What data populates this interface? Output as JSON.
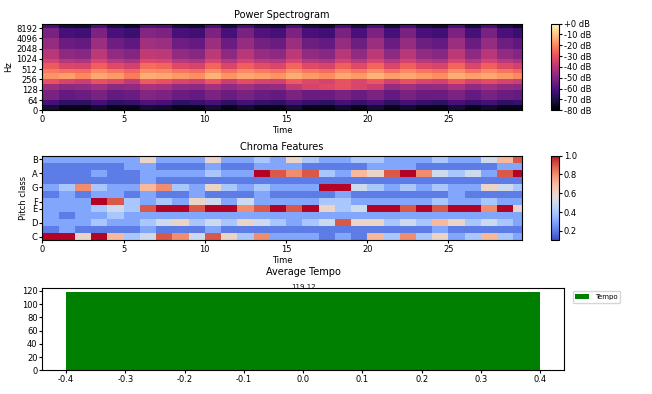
{
  "chart_data": [
    {
      "type": "spectrogram",
      "title": "Power Spectrogram",
      "x_label": "Time",
      "y_label": "Hz",
      "log": "y",
      "xlim": [
        0,
        29.5
      ],
      "xticks": [
        0,
        5,
        10,
        15,
        20,
        25
      ],
      "ylim": [
        0,
        11025
      ],
      "yticks": [
        0,
        64,
        128,
        256,
        512,
        1024,
        2048,
        4096,
        8192
      ],
      "time_edges": [
        0,
        1,
        2,
        3,
        4,
        5,
        6,
        7,
        8,
        9,
        10,
        11,
        12,
        13,
        14,
        15,
        16,
        17,
        18,
        19,
        20,
        21,
        22,
        23,
        24,
        25,
        26,
        27,
        28,
        29,
        29.5
      ],
      "freq_edges": [
        0,
        32,
        64,
        128,
        192,
        256,
        384,
        512,
        768,
        1024,
        2048,
        4096,
        8192,
        11025
      ],
      "cells": [
        [
          -72,
          -76,
          -76,
          -73,
          -76,
          -76,
          -72,
          -73,
          -76,
          -76,
          -72,
          -76,
          -73,
          -76,
          -76,
          -72,
          -76,
          -76,
          -73,
          -76,
          -72,
          -76,
          -73,
          -76,
          -76,
          -72,
          -76,
          -73,
          -76,
          -76
        ],
        [
          -62,
          -66,
          -66,
          -62,
          -66,
          -65,
          -60,
          -61,
          -66,
          -65,
          -61,
          -66,
          -62,
          -65,
          -66,
          -61,
          -65,
          -66,
          -62,
          -65,
          -61,
          -66,
          -62,
          -65,
          -66,
          -61,
          -65,
          -62,
          -66,
          -65
        ],
        [
          -52,
          -56,
          -55,
          -52,
          -56,
          -55,
          -50,
          -51,
          -55,
          -56,
          -51,
          -55,
          -52,
          -55,
          -56,
          -51,
          -55,
          -55,
          -52,
          -55,
          -51,
          -56,
          -52,
          -55,
          -55,
          -51,
          -56,
          -52,
          -55,
          -56
        ],
        [
          -45,
          -48,
          -47,
          -44,
          -48,
          -47,
          -42,
          -43,
          -47,
          -48,
          -43,
          -47,
          -44,
          -47,
          -46,
          -38,
          -34,
          -32,
          -30,
          -33,
          -36,
          -46,
          -44,
          -47,
          -46,
          -42,
          -47,
          -44,
          -47,
          -48
        ],
        [
          -30,
          -34,
          -36,
          -30,
          -32,
          -38,
          -28,
          -30,
          -33,
          -35,
          -29,
          -36,
          -31,
          -34,
          -35,
          -28,
          -32,
          -34,
          -30,
          -33,
          -29,
          -35,
          -30,
          -33,
          -35,
          -29,
          -34,
          -31,
          -34,
          -36
        ],
        [
          -18,
          -16,
          -20,
          -15,
          -17,
          -22,
          -14,
          -15,
          -17,
          -19,
          -13,
          -18,
          -15,
          -16,
          -18,
          -14,
          -17,
          -19,
          -15,
          -17,
          -13,
          -16,
          -15,
          -17,
          -19,
          -14,
          -16,
          -15,
          -17,
          -20
        ],
        [
          -22,
          -24,
          -25,
          -20,
          -23,
          -26,
          -19,
          -20,
          -23,
          -25,
          -19,
          -24,
          -20,
          -22,
          -24,
          -19,
          -23,
          -25,
          -20,
          -23,
          -19,
          -24,
          -20,
          -23,
          -25,
          -19,
          -24,
          -20,
          -23,
          -26
        ],
        [
          -28,
          -33,
          -34,
          -27,
          -32,
          -35,
          -25,
          -26,
          -32,
          -34,
          -26,
          -33,
          -27,
          -31,
          -33,
          -26,
          -32,
          -34,
          -27,
          -32,
          -26,
          -33,
          -27,
          -32,
          -34,
          -26,
          -33,
          -27,
          -32,
          -35
        ],
        [
          -34,
          -40,
          -41,
          -33,
          -39,
          -42,
          -32,
          -33,
          -39,
          -41,
          -33,
          -40,
          -34,
          -38,
          -40,
          -33,
          -39,
          -41,
          -34,
          -39,
          -33,
          -40,
          -34,
          -39,
          -41,
          -33,
          -40,
          -34,
          -39,
          -42
        ],
        [
          -40,
          -48,
          -49,
          -39,
          -47,
          -50,
          -38,
          -39,
          -47,
          -49,
          -39,
          -48,
          -40,
          -46,
          -48,
          -39,
          -47,
          -49,
          -40,
          -47,
          -39,
          -48,
          -40,
          -47,
          -49,
          -39,
          -48,
          -40,
          -47,
          -50
        ],
        [
          -46,
          -55,
          -56,
          -45,
          -54,
          -57,
          -44,
          -45,
          -54,
          -56,
          -45,
          -55,
          -46,
          -53,
          -55,
          -45,
          -54,
          -56,
          -46,
          -54,
          -45,
          -55,
          -46,
          -54,
          -56,
          -45,
          -55,
          -46,
          -54,
          -57
        ],
        [
          -52,
          -62,
          -63,
          -51,
          -61,
          -64,
          -50,
          -51,
          -61,
          -63,
          -51,
          -62,
          -52,
          -60,
          -62,
          -51,
          -61,
          -63,
          -52,
          -61,
          -51,
          -62,
          -52,
          -61,
          -63,
          -51,
          -62,
          -52,
          -61,
          -64
        ],
        [
          -62,
          -72,
          -73,
          -61,
          -71,
          -74,
          -60,
          -61,
          -71,
          -73,
          -61,
          -72,
          -62,
          -70,
          -72,
          -61,
          -71,
          -73,
          -62,
          -71,
          -61,
          -72,
          -62,
          -71,
          -73,
          -61,
          -72,
          -62,
          -71,
          -74
        ]
      ],
      "color": "magma",
      "colorbar_range": [
        -80,
        0
      ],
      "colorbar_ticks": [
        {
          "value": -80,
          "label": "-80 dB"
        },
        {
          "value": -70,
          "label": "-70 dB"
        },
        {
          "value": -60,
          "label": "-60 dB"
        },
        {
          "value": -50,
          "label": "-50 dB"
        },
        {
          "value": -40,
          "label": "-40 dB"
        },
        {
          "value": -30,
          "label": "-30 dB"
        },
        {
          "value": -20,
          "label": "-20 dB"
        },
        {
          "value": -10,
          "label": "-10 dB"
        },
        {
          "value": 0,
          "label": "+0 dB"
        }
      ]
    },
    {
      "type": "heatmap",
      "title": "Chroma Features",
      "x_label": "Time",
      "y_label": "Pitch class",
      "xlim": [
        0,
        29.5
      ],
      "xticks": [
        0,
        5,
        10,
        15,
        20,
        25
      ],
      "ylim": [
        -0.5,
        11.5
      ],
      "yticks": [
        {
          "value": 0,
          "label": "C"
        },
        {
          "value": 2,
          "label": "D"
        },
        {
          "value": 4,
          "label": "E"
        },
        {
          "value": 5,
          "label": "F"
        },
        {
          "value": 7,
          "label": "G"
        },
        {
          "value": 9,
          "label": "A"
        },
        {
          "value": 11,
          "label": "B"
        }
      ],
      "time_edges": [
        0,
        1,
        2,
        3,
        4,
        5,
        6,
        7,
        8,
        9,
        10,
        11,
        12,
        13,
        14,
        15,
        16,
        17,
        18,
        19,
        20,
        21,
        22,
        23,
        24,
        25,
        26,
        27,
        28,
        29,
        29.5
      ],
      "cells": [
        [
          1.0,
          1.0,
          0.6,
          1.0,
          0.7,
          0.4,
          0.5,
          0.9,
          0.8,
          0.5,
          0.9,
          0.6,
          0.4,
          0.8,
          0.3,
          0.3,
          0.3,
          0.2,
          0.3,
          0.2,
          0.7,
          0.4,
          0.8,
          0.4,
          0.6,
          0.3,
          0.4,
          0.7,
          0.4,
          0.3
        ],
        [
          0.2,
          0.3,
          0.2,
          0.2,
          0.2,
          0.2,
          0.3,
          0.2,
          0.2,
          0.2,
          0.3,
          0.2,
          0.2,
          0.2,
          0.2,
          0.2,
          0.2,
          0.2,
          0.2,
          0.2,
          0.2,
          0.2,
          0.2,
          0.2,
          0.3,
          0.2,
          0.2,
          0.2,
          0.2,
          0.2
        ],
        [
          0.3,
          0.3,
          0.3,
          0.4,
          0.3,
          0.3,
          0.4,
          0.5,
          0.6,
          0.4,
          0.5,
          0.4,
          0.6,
          0.5,
          0.4,
          0.3,
          0.4,
          0.5,
          0.9,
          0.6,
          0.6,
          0.4,
          0.5,
          0.4,
          0.7,
          0.6,
          0.4,
          0.5,
          0.4,
          0.3
        ],
        [
          0.3,
          0.2,
          0.3,
          0.3,
          0.4,
          0.3,
          0.3,
          0.3,
          0.3,
          0.3,
          0.3,
          0.3,
          0.3,
          0.3,
          0.3,
          0.3,
          0.3,
          0.3,
          0.3,
          0.3,
          0.3,
          0.3,
          0.3,
          0.3,
          0.3,
          0.3,
          0.3,
          0.3,
          0.3,
          0.3
        ],
        [
          0.3,
          0.3,
          0.3,
          0.4,
          0.5,
          0.4,
          0.9,
          1.0,
          1.0,
          0.9,
          1.0,
          1.0,
          0.8,
          0.9,
          1.0,
          0.9,
          1.0,
          0.6,
          0.4,
          0.5,
          1.0,
          1.0,
          0.9,
          1.0,
          0.9,
          1.0,
          1.0,
          0.8,
          1.0,
          0.6
        ],
        [
          0.3,
          0.3,
          0.3,
          1.0,
          0.9,
          0.4,
          0.3,
          0.4,
          0.3,
          0.6,
          0.5,
          0.3,
          0.5,
          0.3,
          0.3,
          0.3,
          0.3,
          0.4,
          0.4,
          0.3,
          0.3,
          0.3,
          0.3,
          0.3,
          0.4,
          0.3,
          0.3,
          0.4,
          0.3,
          0.3
        ],
        [
          0.2,
          0.3,
          0.2,
          0.3,
          0.3,
          0.2,
          0.3,
          0.2,
          0.2,
          0.3,
          0.2,
          0.2,
          0.2,
          0.3,
          0.2,
          0.2,
          0.2,
          0.2,
          0.3,
          0.2,
          0.2,
          0.2,
          0.2,
          0.2,
          0.2,
          0.3,
          0.2,
          0.2,
          0.2,
          0.2
        ],
        [
          0.3,
          0.4,
          0.8,
          0.4,
          0.3,
          0.3,
          0.7,
          0.8,
          0.4,
          0.3,
          0.6,
          0.4,
          0.3,
          0.4,
          0.3,
          0.3,
          0.3,
          1.0,
          1.0,
          0.5,
          0.4,
          0.3,
          0.4,
          0.3,
          0.4,
          0.3,
          0.3,
          0.6,
          0.5,
          0.4
        ],
        [
          0.2,
          0.2,
          0.2,
          0.2,
          0.2,
          0.2,
          0.3,
          0.2,
          0.2,
          0.2,
          0.2,
          0.2,
          0.2,
          0.2,
          0.2,
          0.2,
          0.2,
          0.2,
          0.2,
          0.2,
          0.2,
          0.2,
          0.2,
          0.2,
          0.2,
          0.2,
          0.2,
          0.2,
          0.2,
          0.2
        ],
        [
          0.2,
          0.2,
          0.2,
          0.3,
          0.2,
          0.2,
          0.3,
          0.3,
          0.3,
          0.3,
          0.4,
          0.3,
          0.3,
          1.0,
          0.9,
          0.8,
          0.9,
          0.4,
          0.3,
          0.7,
          0.6,
          0.9,
          1.0,
          0.8,
          0.5,
          0.4,
          0.5,
          0.3,
          0.9,
          1.0
        ],
        [
          0.2,
          0.2,
          0.2,
          0.2,
          0.2,
          0.3,
          0.3,
          0.2,
          0.2,
          0.2,
          0.3,
          0.2,
          0.2,
          0.3,
          0.3,
          0.3,
          0.2,
          0.2,
          0.2,
          0.2,
          0.3,
          0.3,
          0.3,
          0.2,
          0.2,
          0.2,
          0.2,
          0.2,
          0.3,
          0.3
        ],
        [
          0.3,
          0.3,
          0.3,
          0.3,
          0.3,
          0.3,
          0.6,
          0.3,
          0.3,
          0.3,
          0.6,
          0.3,
          0.3,
          0.4,
          0.3,
          0.6,
          0.4,
          0.3,
          0.3,
          0.4,
          0.4,
          0.3,
          0.3,
          0.3,
          0.4,
          0.3,
          0.3,
          0.5,
          0.7,
          0.9
        ]
      ],
      "color": "coolwarm",
      "colorbar_range": [
        0.1,
        1.0
      ],
      "colorbar_ticks": [
        0.2,
        0.4,
        0.6,
        0.8,
        1.0
      ]
    },
    {
      "type": "bar",
      "title": "Average Tempo",
      "x": [
        0
      ],
      "series": [
        {
          "name": "Tempo",
          "color": "green",
          "values": [
            119.12
          ]
        }
      ],
      "xlim": [
        -0.44,
        0.44
      ],
      "xticks": [
        -0.4,
        -0.3,
        -0.2,
        -0.1,
        {
          "value": 0,
          "label": "0.0"
        },
        0.1,
        0.2,
        0.3,
        0.4
      ],
      "ylim": [
        0,
        125
      ],
      "yticks": [
        0,
        20,
        40,
        60,
        80,
        100,
        120
      ],
      "data_labels": true,
      "legend": "upper right"
    }
  ]
}
